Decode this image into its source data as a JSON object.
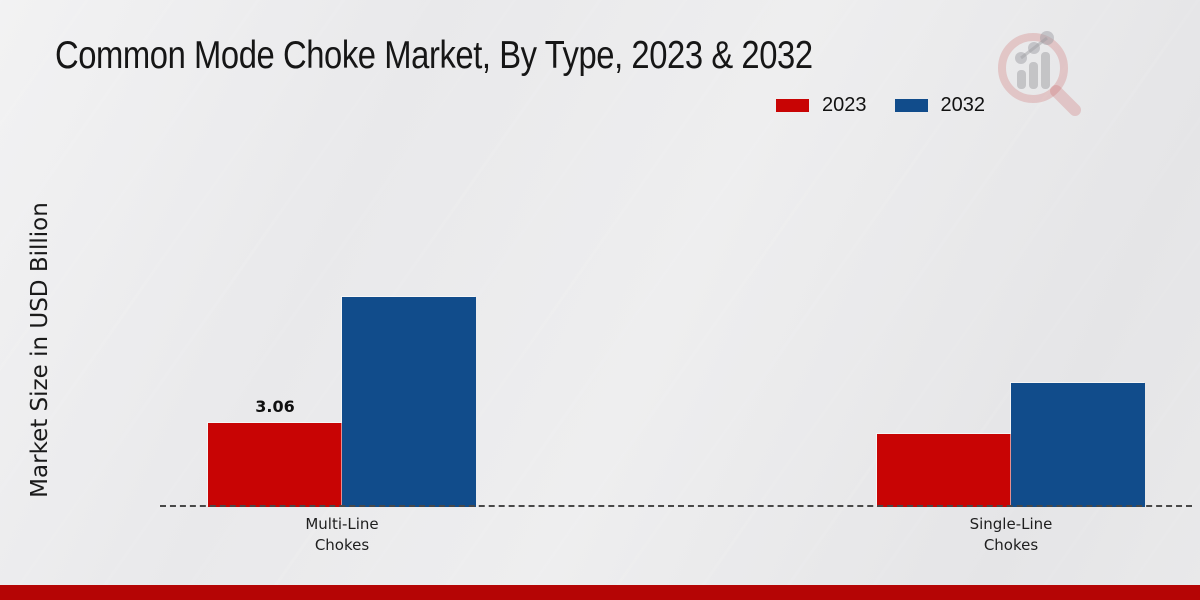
{
  "title": "Common Mode Choke Market, By Type, 2023 & 2032",
  "icons": {
    "watermark": "magnifier-bar-chart-logo"
  },
  "colors": {
    "series_2023": "#c80404",
    "series_2032": "#114c8b",
    "footer_strip": "#b50505",
    "axis_dash": "#484848",
    "background": "#e9e9ea"
  },
  "footer": {
    "color": "#b50505"
  },
  "chart_data": {
    "type": "bar",
    "title": "Common Mode Choke Market, By Type, 2023 & 2032",
    "ylabel": "Market Size in USD Billion",
    "xlabel": "",
    "categories": [
      "Multi-Line\nChokes",
      "Single-Line\nChokes"
    ],
    "series": [
      {
        "name": "2023",
        "color": "#c80404",
        "values": [
          3.06,
          2.66
        ],
        "data_labels": [
          "3.06",
          ""
        ]
      },
      {
        "name": "2032",
        "color": "#114c8b",
        "values": [
          7.65,
          4.52
        ],
        "data_labels": [
          "",
          ""
        ]
      }
    ],
    "ylim": [
      0,
      12
    ],
    "yaxis_ticks": "none",
    "grid": false,
    "legend_position": "top-right",
    "baseline_style": "dashed"
  }
}
